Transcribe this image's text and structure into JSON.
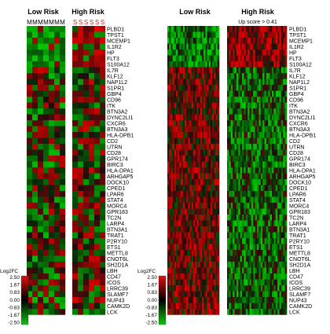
{
  "chart_data": {
    "type": "heatmap",
    "panels": [
      {
        "titles": [
          "Low Risk",
          "High Risk"
        ],
        "subtitle": "",
        "column_groups": [
          "M",
          "M",
          "M",
          "M",
          "M",
          "M",
          "M",
          "S",
          "S",
          "S",
          "S",
          "S",
          "S"
        ],
        "group_colors": {
          "M": "#000000",
          "S": "#d02020"
        }
      },
      {
        "titles": [
          "Low Risk",
          "High Risk"
        ],
        "subtitle": "Up score > 0.41"
      }
    ],
    "genes": [
      "PLBD1",
      "TPST1",
      "MCEMP1",
      "IL1R2",
      "HP",
      "FLT3",
      "S100A12",
      "IL7R",
      "KLF12",
      "NAP1L2",
      "S1PR1",
      "GBP4",
      "CD96",
      "ITK",
      "BTN3A2",
      "DYNC2LI1",
      "CXCR6",
      "BTN3A3",
      "HLA-DPB1",
      "CD2",
      "UTRN",
      "CD28",
      "GPR174",
      "BIRC3",
      "HLA-DPA1",
      "ARHGAP5",
      "DOCK10",
      "CPED1",
      "LPAR6",
      "STAT4",
      "MORC4",
      "GPR183",
      "TC2N",
      "LARP4",
      "BTN3A1",
      "TRAT1",
      "P2RY10",
      "ETS1",
      "METTL8",
      "CNOT6L",
      "SH2D1A",
      "LBH",
      "CD47",
      "ICOS",
      "LRRC39",
      "SLAMF7",
      "NUP43",
      "CAMK2D",
      "LCK"
    ],
    "legend": {
      "title": "Log2FC",
      "ticks": [
        "2.50",
        "1.67",
        "0.83",
        "0.00",
        "-0.83",
        "-1.67",
        "-2.50"
      ]
    },
    "color_scale": {
      "high": "#e01010",
      "mid": "#000000",
      "low": "#10c010"
    }
  }
}
